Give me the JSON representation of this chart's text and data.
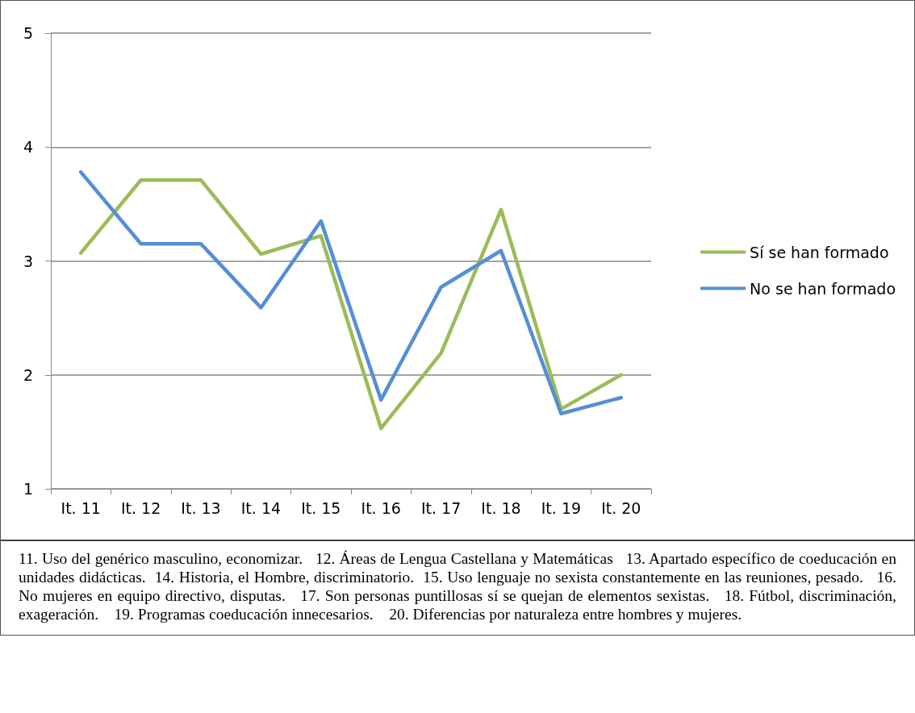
{
  "chart_data": {
    "type": "line",
    "categories": [
      "It. 11",
      "It. 12",
      "It. 13",
      "It. 14",
      "It. 15",
      "It. 16",
      "It. 17",
      "It. 18",
      "It. 19",
      "It. 20"
    ],
    "series": [
      {
        "name": "Sí se han formado",
        "color": "#9bbb59",
        "values": [
          3.07,
          3.71,
          3.71,
          3.06,
          3.22,
          1.53,
          2.19,
          3.45,
          1.7,
          2.0
        ]
      },
      {
        "name": "No se han formado",
        "color": "#558ed5",
        "values": [
          3.78,
          3.15,
          3.15,
          2.59,
          3.35,
          1.78,
          2.77,
          3.09,
          1.66,
          1.8
        ]
      }
    ],
    "ylim": [
      1,
      5
    ],
    "yticks": [
      1,
      2,
      3,
      4,
      5
    ],
    "grid": "y",
    "legend": "right",
    "marker": "none",
    "line_style": "solid",
    "annotations": [
      "11. Uso del genérico masculino, economizar.   12. Áreas de Lengua Castellana y Matemáticas   13. Apartado específico de coeducación en unidades didácticas.  14. Historia, el Hombre, discriminatorio.  15. Uso lenguaje no sexista constantemente en las reuniones, pesado.   16. No mujeres en equipo directivo, disputas.   17. Son personas puntillosas sí se quejan de elementos sexistas.   18. Fútbol, discriminación, exageración.    19. Programas coeducación innecesarios.    20. Diferencias por naturaleza entre hombres y mujeres."
    ]
  }
}
